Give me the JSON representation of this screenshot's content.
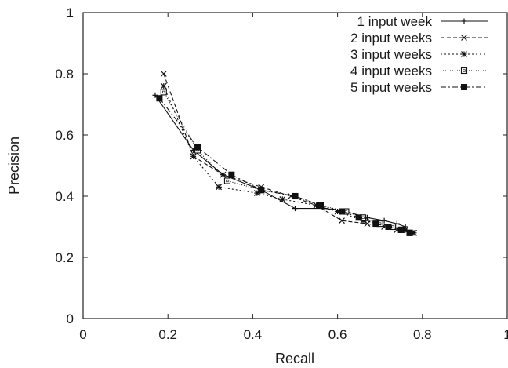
{
  "chart_data": {
    "type": "line",
    "xlabel": "Recall",
    "ylabel": "Precision",
    "xlim": [
      0,
      1
    ],
    "ylim": [
      0,
      1
    ],
    "xticks": [
      "0",
      "0.2",
      "0.4",
      "0.6",
      "0.8",
      "1"
    ],
    "yticks": [
      "0",
      "0.2",
      "0.4",
      "0.6",
      "0.8",
      "1"
    ],
    "grid": false,
    "legend_position": "top-right",
    "series": [
      {
        "name": "1 input week",
        "line_style": "solid",
        "marker": "plus",
        "x": [
          0.17,
          0.26,
          0.33,
          0.42,
          0.5,
          0.57,
          0.62,
          0.67,
          0.71,
          0.74,
          0.76
        ],
        "y": [
          0.73,
          0.55,
          0.47,
          0.42,
          0.36,
          0.36,
          0.35,
          0.33,
          0.32,
          0.31,
          0.3
        ]
      },
      {
        "name": "2 input weeks",
        "line_style": "dashed",
        "marker": "cross",
        "x": [
          0.19,
          0.26,
          0.33,
          0.42,
          0.49,
          0.55,
          0.61,
          0.67,
          0.71,
          0.74,
          0.76,
          0.78
        ],
        "y": [
          0.8,
          0.53,
          0.47,
          0.43,
          0.4,
          0.37,
          0.32,
          0.31,
          0.3,
          0.29,
          0.29,
          0.28
        ]
      },
      {
        "name": "3 input weeks",
        "line_style": "dotted",
        "marker": "star",
        "x": [
          0.19,
          0.26,
          0.32,
          0.41,
          0.47,
          0.55,
          0.6,
          0.66,
          0.7,
          0.73,
          0.76,
          0.78
        ],
        "y": [
          0.76,
          0.53,
          0.43,
          0.41,
          0.39,
          0.37,
          0.35,
          0.32,
          0.31,
          0.3,
          0.29,
          0.28
        ]
      },
      {
        "name": "4 input weeks",
        "line_style": "fine-dotted",
        "marker": "open-square",
        "x": [
          0.19,
          0.27,
          0.34,
          0.42,
          0.5,
          0.56,
          0.62,
          0.66,
          0.7,
          0.73,
          0.75,
          0.77
        ],
        "y": [
          0.74,
          0.55,
          0.45,
          0.42,
          0.4,
          0.37,
          0.35,
          0.33,
          0.31,
          0.3,
          0.29,
          0.28
        ]
      },
      {
        "name": "5 input weeks",
        "line_style": "dash-dot",
        "marker": "filled-square",
        "x": [
          0.18,
          0.27,
          0.35,
          0.42,
          0.5,
          0.56,
          0.61,
          0.65,
          0.69,
          0.72,
          0.75,
          0.77
        ],
        "y": [
          0.72,
          0.56,
          0.47,
          0.42,
          0.4,
          0.37,
          0.35,
          0.33,
          0.31,
          0.3,
          0.29,
          0.28
        ]
      }
    ]
  }
}
